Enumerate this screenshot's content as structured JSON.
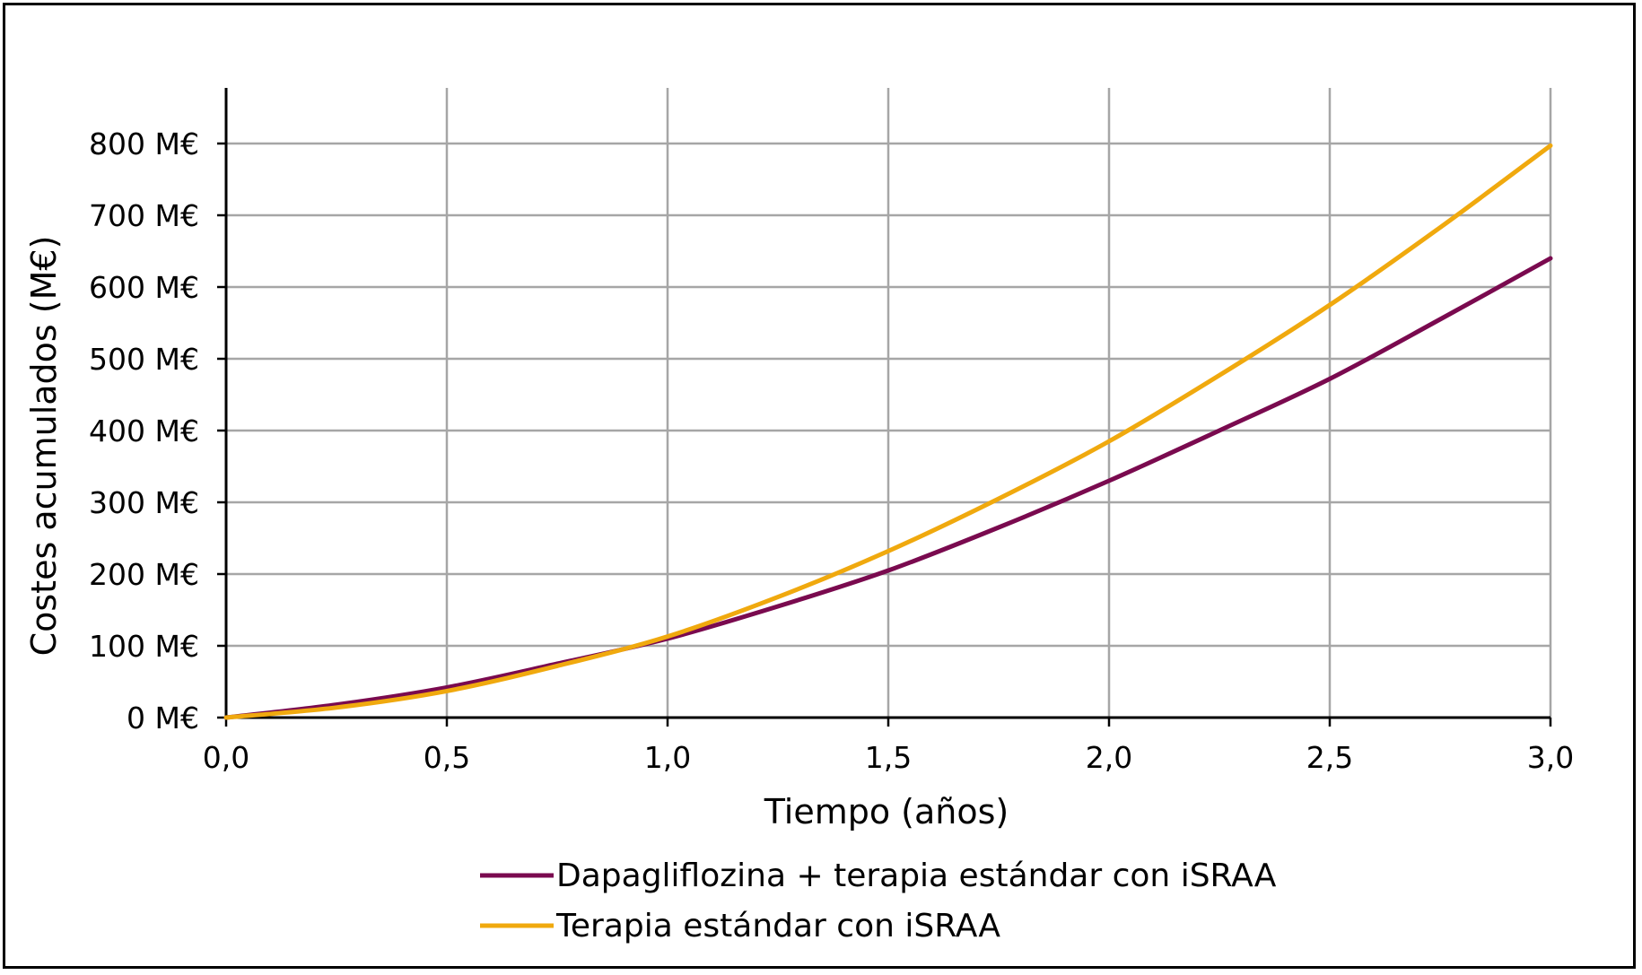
{
  "chart_data": {
    "type": "line",
    "title": "",
    "xlabel": "Tiempo (años)",
    "ylabel": "Costes acumulados (M€)",
    "xlim": [
      0,
      3
    ],
    "ylim": [
      0,
      800
    ],
    "x_ticks": [
      "0,0",
      "0,5",
      "1,0",
      "1,5",
      "2,0",
      "2,5",
      "3,0"
    ],
    "y_ticks": [
      "0 M€",
      "100 M€",
      "200 M€",
      "300 M€",
      "400 M€",
      "500 M€",
      "600 M€",
      "700 M€",
      "800 M€"
    ],
    "grid": true,
    "legend_position": "bottom",
    "series": [
      {
        "name": "Dapagliflozina + terapia estándar con iSRAA",
        "color": "#7a0a4f",
        "x": [
          0,
          0.25,
          0.5,
          0.75,
          1.0,
          1.25,
          1.5,
          1.75,
          2.0,
          2.25,
          2.5,
          2.75,
          3.0
        ],
        "y": [
          0,
          18,
          42,
          75,
          110,
          155,
          205,
          265,
          330,
          400,
          472,
          555,
          640
        ]
      },
      {
        "name": "Terapia estándar con iSRAA",
        "color": "#f0a90e",
        "x": [
          0,
          0.25,
          0.5,
          0.75,
          1.0,
          1.25,
          1.5,
          1.75,
          2.0,
          2.25,
          2.5,
          2.75,
          3.0
        ],
        "y": [
          0,
          14,
          37,
          72,
          113,
          168,
          232,
          305,
          385,
          477,
          575,
          683,
          797
        ]
      }
    ]
  }
}
